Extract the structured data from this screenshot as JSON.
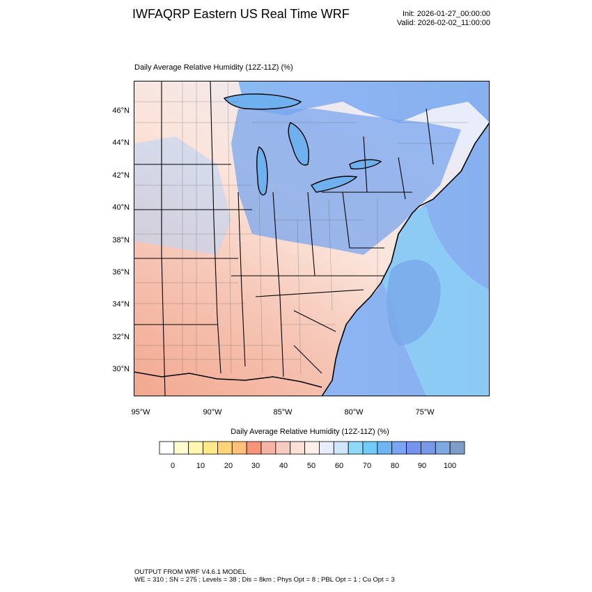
{
  "header": {
    "title": "IWFAQRP Eastern US Real Time WRF",
    "init": "Init: 2026-01-27_00:00:00",
    "valid": "Valid: 2026-02-02_11:00:00"
  },
  "map": {
    "subtitle": "Daily Average Relative Humidity (12Z-11Z)   (%)",
    "lat_labels": [
      "46°N",
      "44°N",
      "42°N",
      "40°N",
      "38°N",
      "36°N",
      "34°N",
      "32°N",
      "30°N"
    ],
    "lon_labels": [
      "95°W",
      "90°W",
      "85°W",
      "80°W",
      "75°W"
    ]
  },
  "colorbar": {
    "title": "Daily Average Relative Humidity (12Z-11Z)  (%)",
    "labels": [
      "0",
      "10",
      "20",
      "30",
      "40",
      "50",
      "60",
      "70",
      "80",
      "90",
      "100"
    ],
    "colors": [
      "#ffffff",
      "#fffbd0",
      "#fff7b0",
      "#ffe98a",
      "#ffd478",
      "#ffc07a",
      "#f8937a",
      "#f4b3a6",
      "#f7cbc0",
      "#fbe0d6",
      "#fdf0ea",
      "#e8ecfb",
      "#cfe6fb",
      "#8ed8f8",
      "#70ccf6",
      "#6fb5f2",
      "#7aa4f4",
      "#7492ee",
      "#7898e8",
      "#7ea8e0",
      "#7e9ec8"
    ]
  },
  "footer": {
    "line1": "OUTPUT FROM WRF V4.6.1 MODEL",
    "line2": "WE = 310 ; SN = 275 ; Levels = 38 ; Dis = 8km ; Phys Opt = 8 ; PBL Opt = 1 ; Cu Opt = 3"
  }
}
